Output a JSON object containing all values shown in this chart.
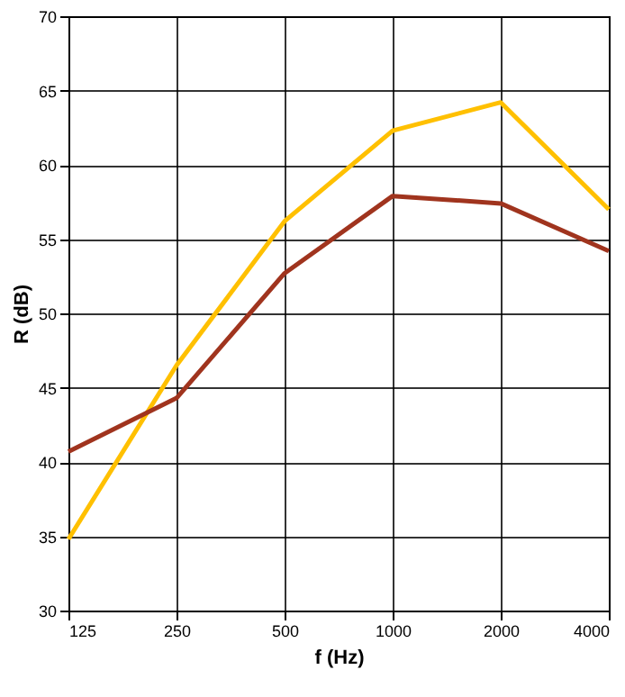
{
  "chart_data": {
    "type": "line",
    "xlabel": "f (Hz)",
    "ylabel": "R (dB)",
    "categories": [
      "125",
      "250",
      "500",
      "1000",
      "2000",
      "4000"
    ],
    "series": [
      {
        "color": "#ffc000",
        "values": [
          34.8,
          46.5,
          56.2,
          62.3,
          64.2,
          57.0
        ]
      },
      {
        "color": "#a0341e",
        "values": [
          40.7,
          44.3,
          52.7,
          57.9,
          57.4,
          54.2
        ]
      }
    ],
    "ylim": [
      30,
      70
    ],
    "yticks": [
      30,
      35,
      40,
      45,
      50,
      55,
      60,
      65,
      70
    ],
    "grid": true,
    "legend": false,
    "marker": "none",
    "line_style": "solid"
  }
}
